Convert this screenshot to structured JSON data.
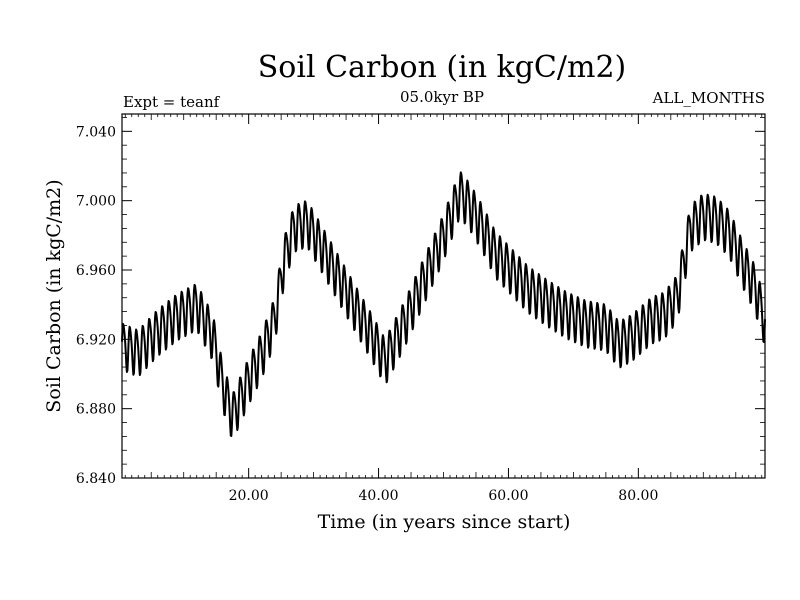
{
  "chart_data": {
    "type": "line",
    "title": "Soil Carbon (in kgC/m2)",
    "subtitle_left": "Expt = teanf",
    "subtitle_center": "05.0kyr BP",
    "subtitle_right": "ALL_MONTHS",
    "xlabel": "Time (in years since start)",
    "ylabel": "Soil Carbon (in kgC/m2)",
    "xlim": [
      0.5,
      99.5
    ],
    "ylim": [
      6.84,
      7.05
    ],
    "x_ticks": [
      20,
      40,
      60,
      80
    ],
    "x_tick_labels": [
      "20.00",
      "40.00",
      "60.00",
      "80.00"
    ],
    "y_ticks": [
      6.84,
      6.88,
      6.92,
      6.96,
      7.0,
      7.04
    ],
    "y_tick_labels": [
      "6.840",
      "6.880",
      "6.920",
      "6.960",
      "7.000",
      "7.040"
    ],
    "series": [
      {
        "name": "Soil Carbon",
        "sampling": "monthly",
        "seasonal_amplitude": 0.013,
        "trend_x": [
          0.5,
          3,
          6,
          9,
          12,
          14.5,
          16,
          17.5,
          20,
          22,
          24,
          25.5,
          27,
          29,
          31,
          34,
          37,
          39,
          41,
          44,
          47,
          50,
          52.5,
          54,
          56,
          58,
          60,
          63,
          66,
          69,
          72,
          75,
          77,
          79,
          82,
          84,
          86,
          88,
          90,
          92,
          94,
          96,
          98,
          99.5
        ],
        "trend_y": [
          6.917,
          6.913,
          6.925,
          6.934,
          6.94,
          6.922,
          6.894,
          6.876,
          6.897,
          6.912,
          6.932,
          6.967,
          6.985,
          6.988,
          6.975,
          6.955,
          6.935,
          6.922,
          6.908,
          6.93,
          6.955,
          6.98,
          7.005,
          6.998,
          6.985,
          6.97,
          6.962,
          6.95,
          6.942,
          6.935,
          6.93,
          6.928,
          6.918,
          6.922,
          6.932,
          6.935,
          6.945,
          6.985,
          6.992,
          6.99,
          6.982,
          6.965,
          6.95,
          6.93
        ]
      }
    ]
  }
}
